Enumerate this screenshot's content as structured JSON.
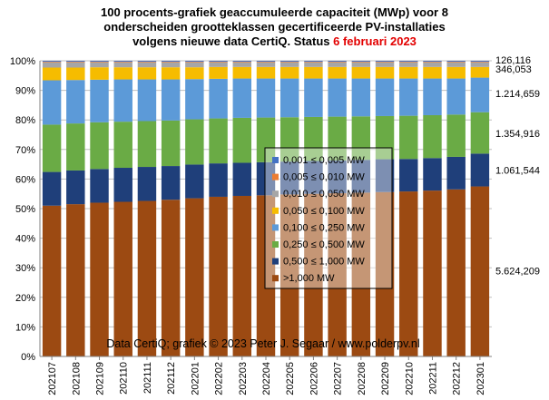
{
  "title": {
    "line1": "100 procents-grafiek geaccumuleerde capaciteit (MWp) voor 8",
    "line2": "onderscheiden grootteklassen gecertificeerde PV-installaties",
    "line3_prefix": "volgens nieuwe data CertiQ. Status",
    "line3_date": "6 februari  2023"
  },
  "credit": "Data CertiQ; grafiek © 2023 Peter J. Segaar / www.polderpv.nl",
  "chart_data": {
    "type": "bar",
    "stacked": "percent",
    "categories": [
      "202107",
      "202108",
      "202109",
      "202110",
      "202111",
      "202112",
      "202201",
      "202202",
      "202203",
      "202204",
      "202205",
      "202206",
      "202207",
      "202208",
      "202209",
      "202210",
      "202211",
      "202212",
      "202301"
    ],
    "ylim": [
      0,
      100
    ],
    "yticks": [
      "0%",
      "10%",
      "20%",
      "30%",
      "40%",
      "50%",
      "60%",
      "70%",
      "80%",
      "90%",
      "100%"
    ],
    "grid": true,
    "legend_position": "center",
    "series": [
      {
        "name": ">1,000 MW",
        "color": "#9c4a12",
        "values": [
          51.0,
          51.5,
          52.0,
          52.3,
          52.6,
          53.0,
          53.5,
          54.0,
          54.3,
          54.5,
          54.8,
          55.0,
          55.2,
          55.4,
          55.6,
          55.8,
          56.1,
          56.5,
          57.5
        ]
      },
      {
        "name": "0,500 ≤  1,000 MW",
        "color": "#1f3f7a",
        "values": [
          11.4,
          11.4,
          11.4,
          11.5,
          11.5,
          11.4,
          11.4,
          11.3,
          11.2,
          11.2,
          11.1,
          11.1,
          11.1,
          11.1,
          11.1,
          11.0,
          11.0,
          11.0,
          11.1
        ]
      },
      {
        "name": "0,250 ≤  0,500 MW",
        "color": "#6aab45",
        "values": [
          16.0,
          15.9,
          15.8,
          15.6,
          15.5,
          15.4,
          15.3,
          15.2,
          15.2,
          15.1,
          15.0,
          14.9,
          14.8,
          14.7,
          14.6,
          14.6,
          14.5,
          14.3,
          14.0
        ]
      },
      {
        "name": "0,100 ≤  0,250 MW",
        "color": "#5c9ad8",
        "values": [
          15.0,
          14.7,
          14.4,
          14.3,
          14.1,
          13.9,
          13.6,
          13.4,
          13.3,
          13.2,
          13.1,
          13.0,
          12.9,
          12.8,
          12.7,
          12.6,
          12.4,
          12.2,
          11.7
        ]
      },
      {
        "name": "0,050 ≤  0,100 MW",
        "color": "#f6bc00",
        "values": [
          4.3,
          4.2,
          4.2,
          4.1,
          4.1,
          4.1,
          4.0,
          4.0,
          3.9,
          3.9,
          3.9,
          3.9,
          3.9,
          3.9,
          3.9,
          3.9,
          3.9,
          3.9,
          3.6
        ]
      },
      {
        "name": "0,010 ≤  0,050 MW",
        "color": "#a6a6a6",
        "values": [
          1.8,
          1.8,
          1.7,
          1.7,
          1.7,
          1.7,
          1.7,
          1.6,
          1.6,
          1.6,
          1.6,
          1.6,
          1.6,
          1.6,
          1.6,
          1.6,
          1.6,
          1.6,
          1.6
        ]
      },
      {
        "name": "0,005 ≤  0,010 MW",
        "color": "#ed7d31",
        "values": [
          0.2,
          0.2,
          0.2,
          0.2,
          0.2,
          0.2,
          0.2,
          0.2,
          0.2,
          0.2,
          0.2,
          0.2,
          0.2,
          0.2,
          0.2,
          0.2,
          0.2,
          0.2,
          0.2
        ]
      },
      {
        "name": "0,001 ≤  0,005 MW",
        "color": "#4472c4",
        "values": [
          0.3,
          0.3,
          0.3,
          0.3,
          0.3,
          0.3,
          0.3,
          0.3,
          0.3,
          0.3,
          0.3,
          0.3,
          0.3,
          0.3,
          0.3,
          0.3,
          0.3,
          0.3,
          0.3
        ]
      }
    ],
    "legend_order": [
      7,
      6,
      5,
      4,
      3,
      2,
      1,
      0
    ],
    "annotations": [
      {
        "text": "126,116",
        "value_pct": 99.5
      },
      {
        "text": "346,053",
        "value_pct": 98.2
      },
      {
        "text": "1.214,659",
        "value_pct": 88.9
      },
      {
        "text": "1.354,916",
        "value_pct": 75.5
      },
      {
        "text": "1.061,544",
        "value_pct": 63.0
      },
      {
        "text": "5.624,209",
        "value_pct": 29.0
      }
    ]
  }
}
